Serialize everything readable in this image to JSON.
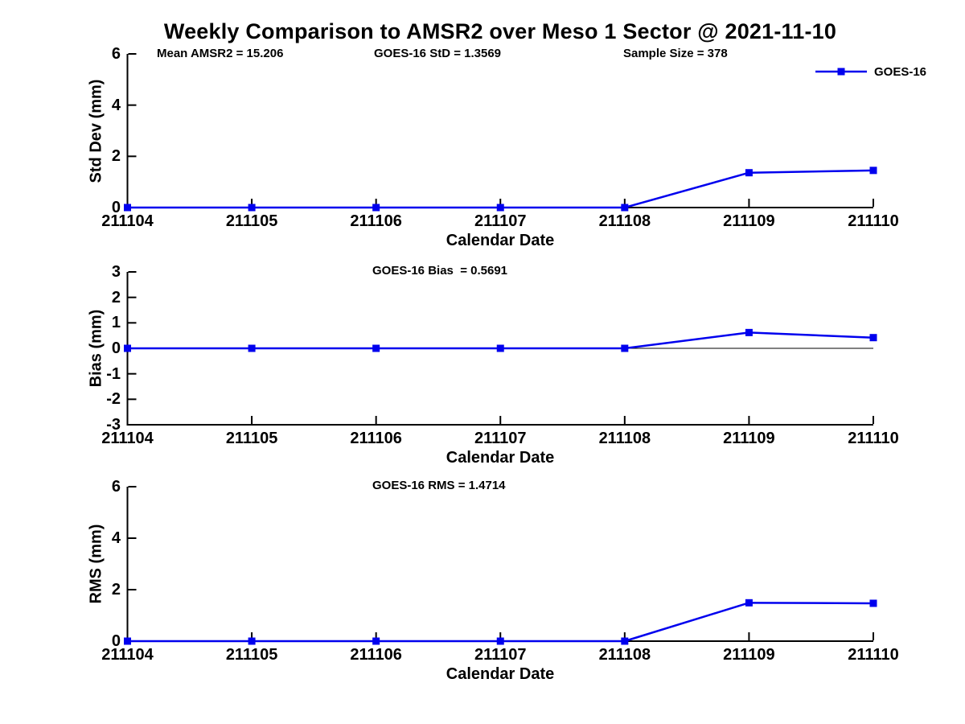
{
  "title": "Weekly Comparison to AMSR2 over Meso 1 Sector @ 2021-11-10",
  "legend": {
    "series_label": "GOES-16",
    "position": "top-right"
  },
  "colors": {
    "series_blue": "#0000ee",
    "axis_black": "#000000",
    "background": "#ffffff"
  },
  "chart_data": [
    {
      "type": "line",
      "id": "std-dev",
      "ylabel": "Std Dev (mm)",
      "xlabel": "Calendar Date",
      "categories": [
        "211104",
        "211105",
        "211106",
        "211107",
        "211108",
        "211109",
        "211110"
      ],
      "yticks": [
        0,
        2,
        4,
        6
      ],
      "ylim": [
        0,
        6
      ],
      "grid": false,
      "annotations": [
        "Mean AMSR2 = 15.206",
        "GOES-16 StD = 1.3569",
        "Sample Size = 378"
      ],
      "series": [
        {
          "name": "GOES-16",
          "values": [
            0,
            0,
            0,
            0,
            0,
            1.36,
            1.45
          ]
        }
      ]
    },
    {
      "type": "line",
      "id": "bias",
      "ylabel": "Bias (mm)",
      "xlabel": "Calendar Date",
      "categories": [
        "211104",
        "211105",
        "211106",
        "211107",
        "211108",
        "211109",
        "211110"
      ],
      "yticks": [
        3,
        2,
        1,
        0,
        -1,
        -2,
        -3
      ],
      "ylim": [
        -3,
        3
      ],
      "grid": false,
      "zero_line": true,
      "annotations": [
        "GOES-16 Bias  = 0.5691"
      ],
      "series": [
        {
          "name": "GOES-16",
          "values": [
            0,
            0,
            0,
            0,
            0,
            0.62,
            0.42
          ]
        }
      ]
    },
    {
      "type": "line",
      "id": "rms",
      "ylabel": "RMS (mm)",
      "xlabel": "Calendar Date",
      "categories": [
        "211104",
        "211105",
        "211106",
        "211107",
        "211108",
        "211109",
        "211110"
      ],
      "yticks": [
        0,
        2,
        4,
        6
      ],
      "ylim": [
        0,
        6
      ],
      "grid": false,
      "annotations": [
        "GOES-16 RMS = 1.4714"
      ],
      "series": [
        {
          "name": "GOES-16",
          "values": [
            0,
            0,
            0,
            0,
            0,
            1.49,
            1.47
          ]
        }
      ]
    }
  ]
}
